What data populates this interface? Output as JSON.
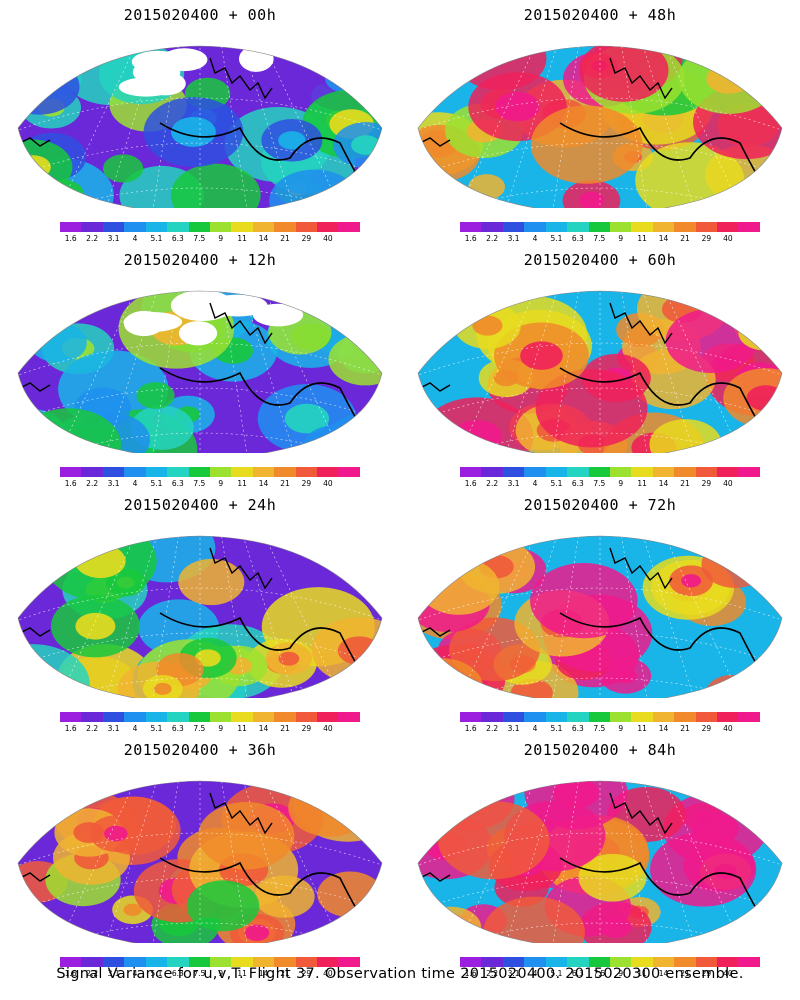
{
  "panels": [
    {
      "title": "2015020400  + 00h",
      "intensity": 0.15
    },
    {
      "title": "2015020400  + 48h",
      "intensity": 0.65
    },
    {
      "title": "2015020400  + 12h",
      "intensity": 0.3
    },
    {
      "title": "2015020400  + 60h",
      "intensity": 0.72
    },
    {
      "title": "2015020400  + 24h",
      "intensity": 0.42
    },
    {
      "title": "2015020400  + 72h",
      "intensity": 0.78
    },
    {
      "title": "2015020400  + 36h",
      "intensity": 0.52
    },
    {
      "title": "2015020400  + 84h",
      "intensity": 0.82
    }
  ],
  "colorbar": {
    "labels": [
      "1.6",
      "2.2",
      "3.1",
      "4",
      "5.1",
      "6.3",
      "7.5",
      "9",
      "11",
      "14",
      "21",
      "29",
      "40"
    ],
    "colors": [
      "#9c1fe0",
      "#6a28d8",
      "#2f4fe0",
      "#1f8ff0",
      "#19b4e8",
      "#25d4c0",
      "#18c83c",
      "#9ce030",
      "#e8dc1e",
      "#f0b430",
      "#f08a2a",
      "#f05a3a",
      "#f0205a",
      "#f01a8c"
    ]
  },
  "caption": "Signal Variance for u,v,T. Flight 37. Observation time 2015020400. 2015020300 ensemble."
}
